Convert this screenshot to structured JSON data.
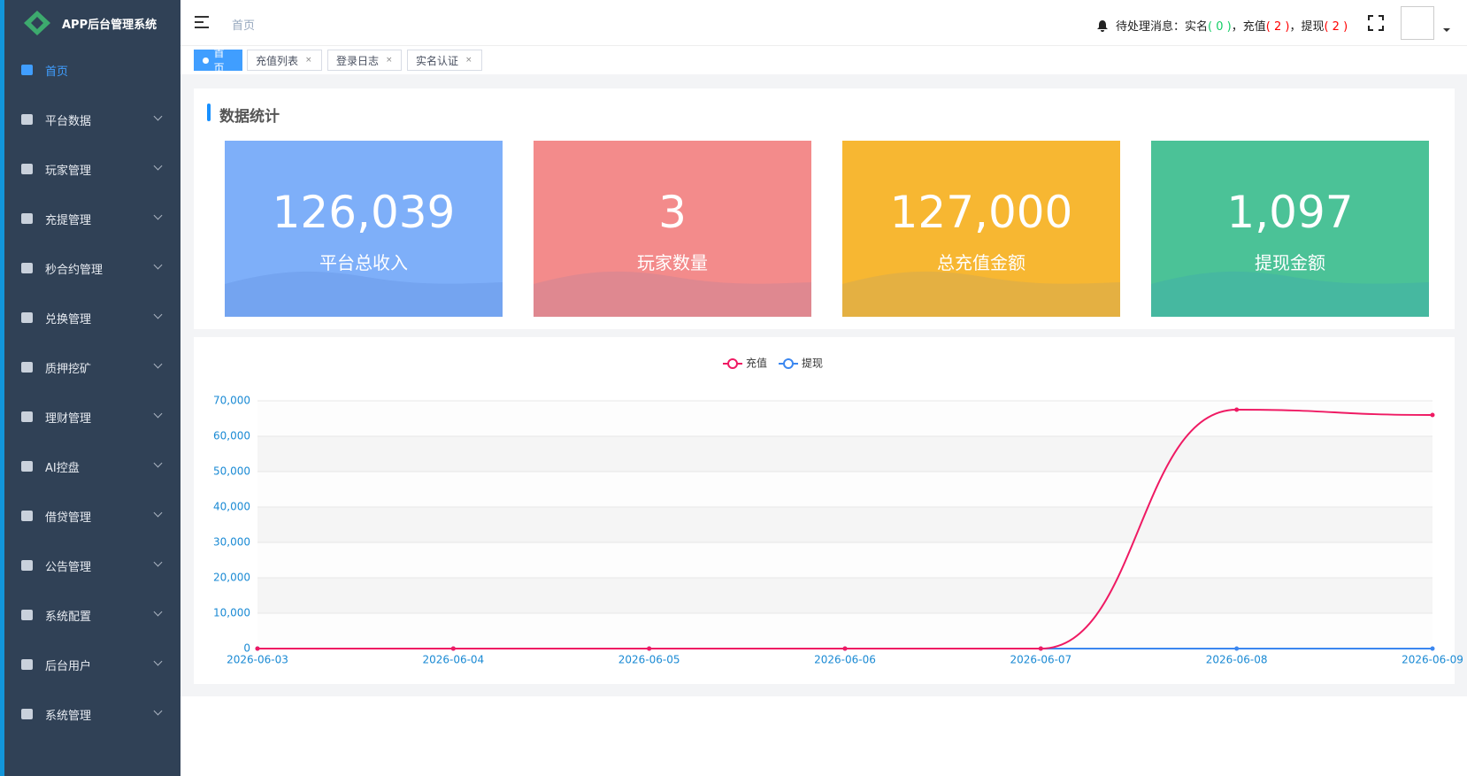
{
  "sidebar": {
    "logo": "APP后台管理系统",
    "menu": [
      "首页",
      "平台数据",
      "玩家管理",
      "充提管理",
      "秒合约管理",
      "兑换管理",
      "质押挖矿",
      "理财管理",
      "AI控盘",
      "借贷管理",
      "公告管理",
      "系统配置",
      "后台用户",
      "系统管理"
    ]
  },
  "header": {
    "breadcrumb": "首页",
    "notice": "待处理消息：",
    "items": [
      {
        "name": "实名",
        "count": "( 0 )"
      },
      {
        "name": "充值",
        "count": "( 2 )"
      },
      {
        "name": "提现",
        "count": "( 2 )"
      }
    ],
    "separator": "，"
  },
  "tabs": [
    "首页",
    "充值列表",
    "登录日志",
    "实名认证"
  ],
  "stats": {
    "title": "数据统计",
    "cards": [
      {
        "value": "126,039",
        "label": "平台总收入"
      },
      {
        "value": "3",
        "label": "玩家数量"
      },
      {
        "value": "127,000",
        "label": "总充值金额"
      },
      {
        "value": "1,097",
        "label": "提现金额"
      }
    ]
  },
  "chart_data": {
    "type": "line",
    "x": [
      "2026-06-03",
      "2026-06-04",
      "2026-06-05",
      "2026-06-06",
      "2026-06-07",
      "2026-06-08",
      "2026-06-09"
    ],
    "series": [
      {
        "name": "充值",
        "color": "#ef1a63",
        "values": [
          0,
          0,
          0,
          0,
          0,
          67500,
          66000
        ]
      },
      {
        "name": "提现",
        "color": "#3b87f0",
        "values": [
          0,
          0,
          0,
          0,
          0,
          0,
          0
        ]
      }
    ],
    "ylim": [
      0,
      70000
    ],
    "yticks": [
      0,
      {
        "value": 10000,
        "label": "10,000"
      },
      {
        "value": 20000,
        "label": "20,000"
      },
      {
        "value": 30000,
        "label": "30,000"
      },
      {
        "value": 40000,
        "label": "40,000"
      },
      {
        "value": 50000,
        "label": "50,000"
      },
      {
        "value": 60000,
        "label": "60,000"
      },
      {
        "value": 70000,
        "label": "70,000"
      }
    ],
    "grid": true,
    "smooth": true,
    "legend": "top"
  }
}
